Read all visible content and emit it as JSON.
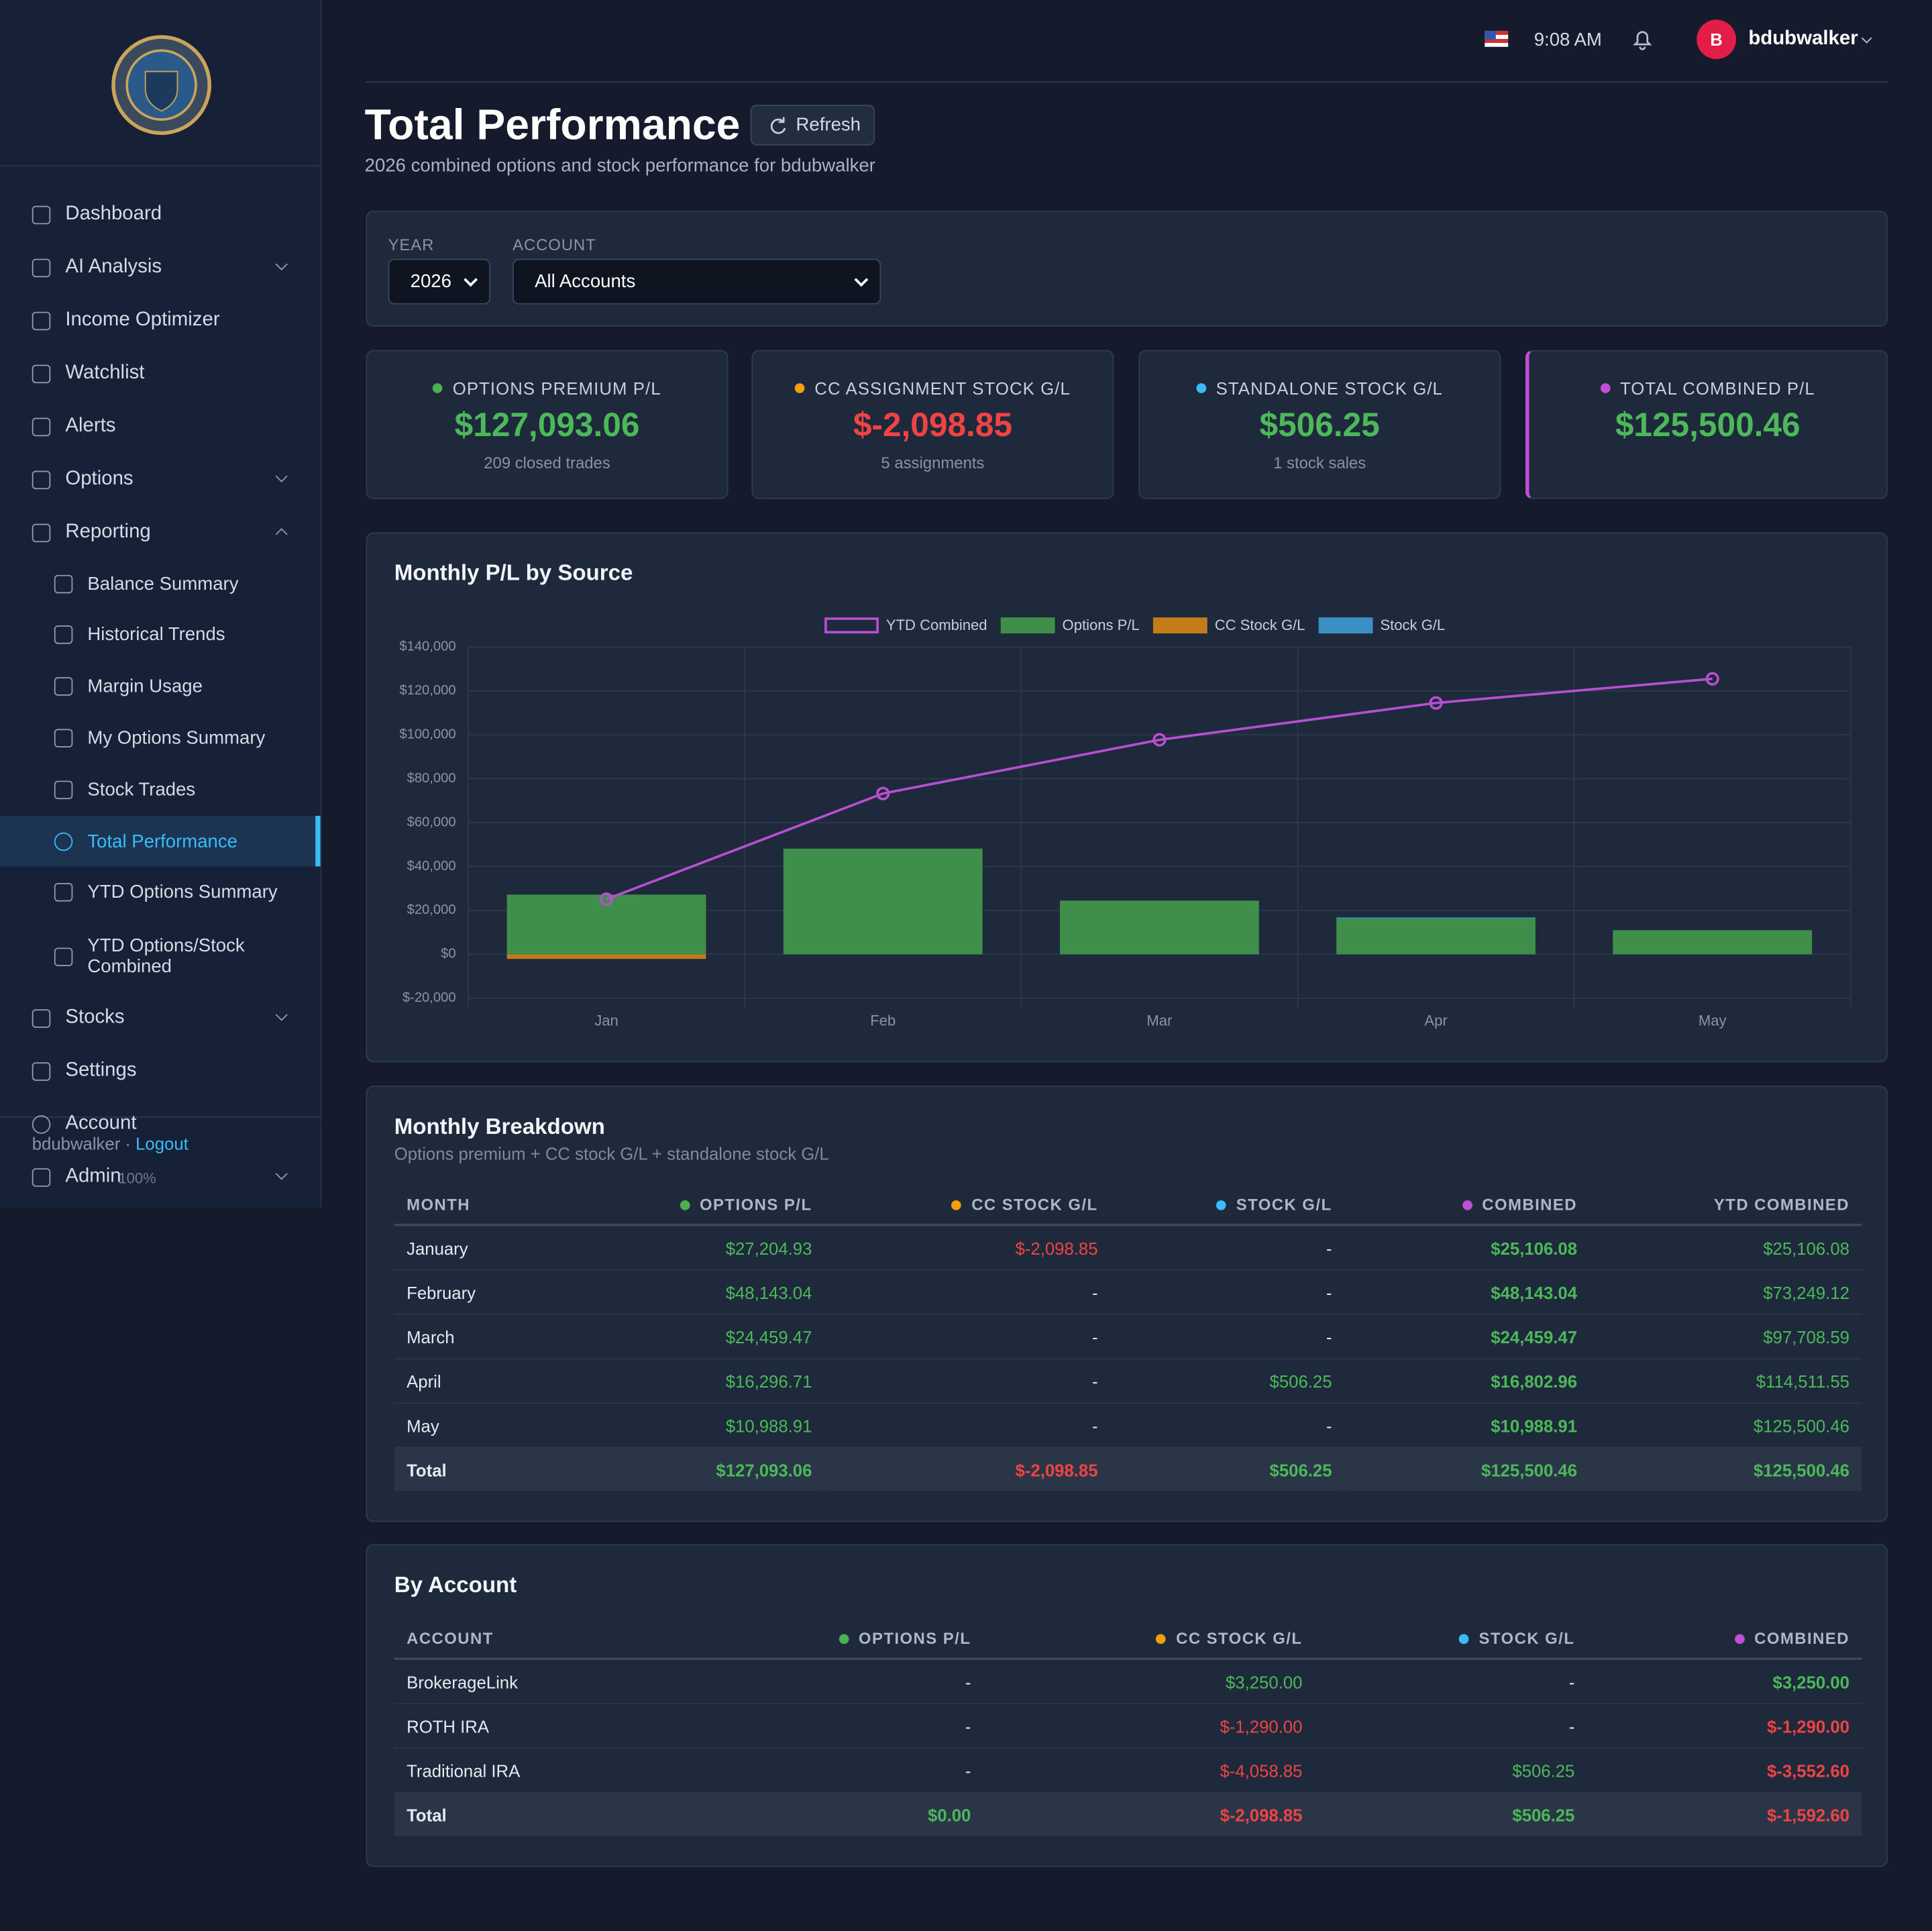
{
  "sidebar": {
    "nav": [
      "Dashboard",
      "AI Analysis",
      "Income Optimizer",
      "Watchlist",
      "Alerts",
      "Options",
      "Reporting",
      "Stocks",
      "Settings"
    ],
    "reporting_sub": [
      "Balance Summary",
      "Historical Trends",
      "Margin Usage",
      "My Options Summary",
      "Stock Trades",
      "Total Performance",
      "YTD Options Summary",
      "YTD Options/Stock Combined"
    ],
    "account": "Account",
    "user": "bdubwalker ·",
    "logout": "Logout",
    "admin": "Admin",
    "zoom": "100%"
  },
  "header": {
    "time": "9:08 AM",
    "avatar": "B",
    "user": "bdubwalker"
  },
  "page": {
    "title": "Total Performance",
    "refresh": "Refresh",
    "subtitle": "2026 combined options and stock performance for bdubwalker"
  },
  "filters": {
    "year_label": "YEAR",
    "year": "2026",
    "account_label": "ACCOUNT",
    "account": "All Accounts"
  },
  "cards": [
    {
      "label": "OPTIONS PREMIUM P/L",
      "value": "$127,093.06",
      "sub": "209 closed trades"
    },
    {
      "label": "CC ASSIGNMENT STOCK G/L",
      "value": "$-2,098.85",
      "sub": "5 assignments"
    },
    {
      "label": "STANDALONE STOCK G/L",
      "value": "$506.25",
      "sub": "1 stock sales"
    },
    {
      "label": "TOTAL COMBINED P/L",
      "value": "$125,500.46"
    }
  ],
  "chart_data": {
    "type": "bar",
    "title": "Monthly P/L by Source",
    "categories": [
      "Jan",
      "Feb",
      "Mar",
      "Apr",
      "May"
    ],
    "series": [
      {
        "name": "YTD Combined",
        "type": "line",
        "color": "#b84fd1",
        "values": [
          25106.08,
          73249.12,
          97708.59,
          114511.55,
          125500.46
        ]
      },
      {
        "name": "Options P/L",
        "color": "#3f8f4b",
        "values": [
          27204.93,
          48143.04,
          24459.47,
          16296.71,
          10988.91
        ]
      },
      {
        "name": "CC Stock G/L",
        "color": "#c27c18",
        "values": [
          -2098.85,
          null,
          null,
          null,
          null
        ]
      },
      {
        "name": "Stock G/L",
        "color": "#3b8fc4",
        "values": [
          null,
          null,
          null,
          506.25,
          null
        ]
      }
    ],
    "ylim": [
      -20000,
      140000
    ],
    "yticks": [
      {
        "value": -20000,
        "label": "$-20,000"
      },
      {
        "value": 0,
        "label": "$0"
      },
      {
        "value": 20000,
        "label": "$20,000"
      },
      {
        "value": 40000,
        "label": "$40,000"
      },
      {
        "value": 60000,
        "label": "$60,000"
      },
      {
        "value": 80000,
        "label": "$80,000"
      },
      {
        "value": 100000,
        "label": "$100,000"
      },
      {
        "value": 120000,
        "label": "$120,000"
      },
      {
        "value": 140000,
        "label": "$140,000"
      }
    ],
    "grid": true
  },
  "monthly_breakdown": {
    "title": "Monthly Breakdown",
    "subtitle": "Options premium + CC stock G/L + standalone stock G/L",
    "columns": [
      "MONTH",
      "OPTIONS P/L",
      "CC STOCK G/L",
      "STOCK G/L",
      "COMBINED",
      "YTD COMBINED"
    ],
    "rows": [
      [
        "January",
        "$27,204.93",
        "$-2,098.85",
        "-",
        "$25,106.08",
        "$25,106.08"
      ],
      [
        "February",
        "$48,143.04",
        "-",
        "-",
        "$48,143.04",
        "$73,249.12"
      ],
      [
        "March",
        "$24,459.47",
        "-",
        "-",
        "$24,459.47",
        "$97,708.59"
      ],
      [
        "April",
        "$16,296.71",
        "-",
        "$506.25",
        "$16,802.96",
        "$114,511.55"
      ],
      [
        "May",
        "$10,988.91",
        "-",
        "-",
        "$10,988.91",
        "$125,500.46"
      ]
    ],
    "total": [
      "Total",
      "$127,093.06",
      "$-2,098.85",
      "$506.25",
      "$125,500.46",
      "$125,500.46"
    ]
  },
  "by_account": {
    "title": "By Account",
    "columns": [
      "ACCOUNT",
      "OPTIONS P/L",
      "CC STOCK G/L",
      "STOCK G/L",
      "COMBINED"
    ],
    "rows": [
      [
        "BrokerageLink",
        "-",
        "$3,250.00",
        "-",
        "$3,250.00"
      ],
      [
        "ROTH IRA",
        "-",
        "$-1,290.00",
        "-",
        "$-1,290.00"
      ],
      [
        "Traditional IRA",
        "-",
        "$-4,058.85",
        "$506.25",
        "$-3,552.60"
      ]
    ],
    "total": [
      "Total",
      "$0.00",
      "$-2,098.85",
      "$506.25",
      "$-1,592.60"
    ]
  }
}
